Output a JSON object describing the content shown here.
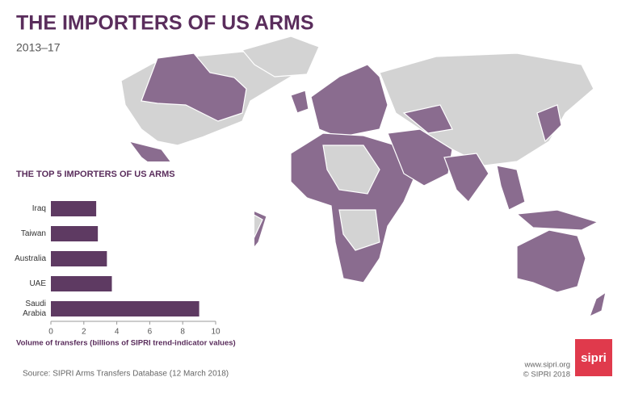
{
  "header": {
    "title": "THE IMPORTERS OF US ARMS",
    "subtitle": "2013–17"
  },
  "chart_data": {
    "type": "hbar",
    "title": "THE TOP 5 IMPORTERS OF US ARMS",
    "categories": [
      "Iraq",
      "Taiwan",
      "Australia",
      "UAE",
      "Saudi Arabia"
    ],
    "values": [
      2.75,
      2.85,
      3.4,
      3.7,
      9.0
    ],
    "color": "#5e3a62",
    "xlim": [
      0,
      10
    ],
    "xticks": [
      0,
      2,
      4,
      6,
      8,
      10
    ],
    "xlabel": "Volume of transfers (billions of SIPRI trend-indicator values)"
  },
  "footer": {
    "source": "Source: SIPRI Arms Transfers Database (12 March 2018)",
    "website": "www.sipri.org",
    "copyright": "© SIPRI 2018",
    "logo": "sipri"
  }
}
